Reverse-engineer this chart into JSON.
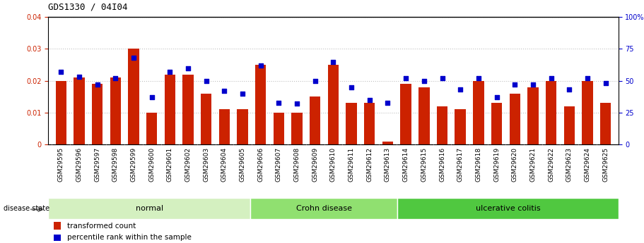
{
  "title": "GDS1330 / 04I04",
  "samples": [
    "GSM29595",
    "GSM29596",
    "GSM29597",
    "GSM29598",
    "GSM29599",
    "GSM29600",
    "GSM29601",
    "GSM29602",
    "GSM29603",
    "GSM29604",
    "GSM29605",
    "GSM29606",
    "GSM29607",
    "GSM29608",
    "GSM29609",
    "GSM29610",
    "GSM29611",
    "GSM29612",
    "GSM29613",
    "GSM29614",
    "GSM29615",
    "GSM29616",
    "GSM29617",
    "GSM29618",
    "GSM29619",
    "GSM29620",
    "GSM29621",
    "GSM29622",
    "GSM29623",
    "GSM29624",
    "GSM29625"
  ],
  "bar_values": [
    0.02,
    0.021,
    0.019,
    0.021,
    0.03,
    0.01,
    0.022,
    0.022,
    0.016,
    0.011,
    0.011,
    0.025,
    0.01,
    0.01,
    0.015,
    0.025,
    0.013,
    0.013,
    0.001,
    0.019,
    0.018,
    0.012,
    0.011,
    0.02,
    0.013,
    0.016,
    0.018,
    0.02,
    0.012,
    0.02,
    0.013
  ],
  "percentile_values": [
    57,
    53,
    47,
    52,
    68,
    37,
    57,
    60,
    50,
    42,
    40,
    62,
    33,
    32,
    50,
    65,
    45,
    35,
    33,
    52,
    50,
    52,
    43,
    52,
    37,
    47,
    47,
    52,
    43,
    52,
    48
  ],
  "groups": [
    {
      "label": "normal",
      "start": 0,
      "end": 11,
      "color": "#d4f0c0"
    },
    {
      "label": "Crohn disease",
      "start": 11,
      "end": 19,
      "color": "#90e070"
    },
    {
      "label": "ulcerative colitis",
      "start": 19,
      "end": 31,
      "color": "#50c840"
    }
  ],
  "bar_color": "#cc2200",
  "dot_color": "#0000cc",
  "left_ylim": [
    0,
    0.04
  ],
  "right_ylim": [
    0,
    100
  ],
  "left_yticks": [
    0,
    0.01,
    0.02,
    0.03,
    0.04
  ],
  "right_yticks": [
    0,
    25,
    50,
    75,
    100
  ],
  "background_color": "#ffffff",
  "plot_bg_color": "#ffffff",
  "title_fontsize": 9,
  "tick_fontsize": 7,
  "label_fontsize": 8,
  "grid_color": "#000000",
  "grid_alpha": 0.25,
  "grid_linestyle": ":",
  "xtick_bg_color": "#d0d0d0"
}
